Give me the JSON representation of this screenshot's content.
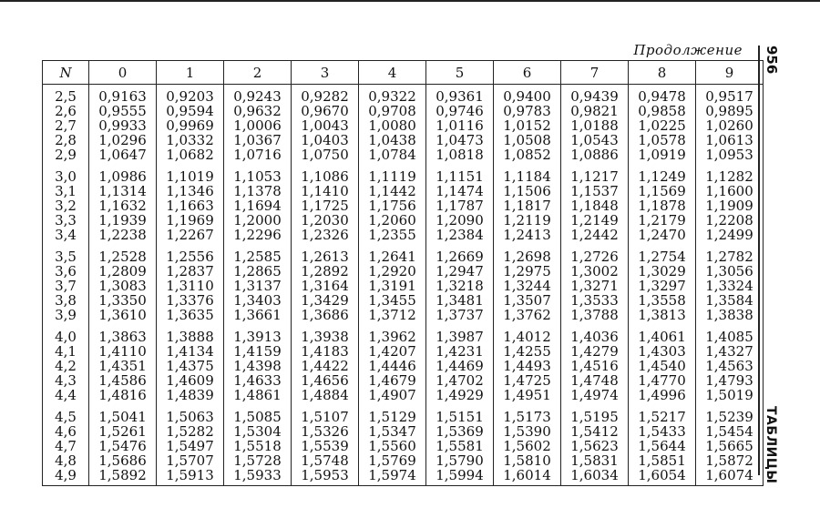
{
  "continuation": "Продолжение",
  "page_number": "956",
  "section": "ТАБЛИЦЫ",
  "columns": [
    "N",
    "0",
    "1",
    "2",
    "3",
    "4",
    "5",
    "6",
    "7",
    "8",
    "9"
  ],
  "groups": [
    [
      [
        "2,5",
        "0,9163",
        "0,9203",
        "0,9243",
        "0,9282",
        "0,9322",
        "0,9361",
        "0,9400",
        "0,9439",
        "0,9478",
        "0,9517"
      ],
      [
        "2,6",
        "0,9555",
        "0,9594",
        "0,9632",
        "0,9670",
        "0,9708",
        "0,9746",
        "0,9783",
        "0,9821",
        "0,9858",
        "0,9895"
      ],
      [
        "2,7",
        "0,9933",
        "0,9969",
        "1,0006",
        "1,0043",
        "1,0080",
        "1,0116",
        "1,0152",
        "1,0188",
        "1,0225",
        "1,0260"
      ],
      [
        "2,8",
        "1,0296",
        "1,0332",
        "1,0367",
        "1,0403",
        "1,0438",
        "1,0473",
        "1,0508",
        "1,0543",
        "1,0578",
        "1,0613"
      ],
      [
        "2,9",
        "1,0647",
        "1,0682",
        "1,0716",
        "1,0750",
        "1,0784",
        "1,0818",
        "1,0852",
        "1,0886",
        "1,0919",
        "1,0953"
      ]
    ],
    [
      [
        "3,0",
        "1,0986",
        "1,1019",
        "1,1053",
        "1,1086",
        "1,1119",
        "1,1151",
        "1,1184",
        "1,1217",
        "1,1249",
        "1,1282"
      ],
      [
        "3,1",
        "1,1314",
        "1,1346",
        "1,1378",
        "1,1410",
        "1,1442",
        "1,1474",
        "1,1506",
        "1,1537",
        "1,1569",
        "1,1600"
      ],
      [
        "3,2",
        "1,1632",
        "1,1663",
        "1,1694",
        "1,1725",
        "1,1756",
        "1,1787",
        "1,1817",
        "1,1848",
        "1,1878",
        "1,1909"
      ],
      [
        "3,3",
        "1,1939",
        "1,1969",
        "1,2000",
        "1,2030",
        "1,2060",
        "1,2090",
        "1,2119",
        "1,2149",
        "1,2179",
        "1,2208"
      ],
      [
        "3,4",
        "1,2238",
        "1,2267",
        "1,2296",
        "1,2326",
        "1,2355",
        "1,2384",
        "1,2413",
        "1,2442",
        "1,2470",
        "1,2499"
      ]
    ],
    [
      [
        "3,5",
        "1,2528",
        "1,2556",
        "1,2585",
        "1,2613",
        "1,2641",
        "1,2669",
        "1,2698",
        "1,2726",
        "1,2754",
        "1,2782"
      ],
      [
        "3,6",
        "1,2809",
        "1,2837",
        "1,2865",
        "1,2892",
        "1,2920",
        "1,2947",
        "1,2975",
        "1,3002",
        "1,3029",
        "1,3056"
      ],
      [
        "3,7",
        "1,3083",
        "1,3110",
        "1,3137",
        "1,3164",
        "1,3191",
        "1,3218",
        "1,3244",
        "1,3271",
        "1,3297",
        "1,3324"
      ],
      [
        "3,8",
        "1,3350",
        "1,3376",
        "1,3403",
        "1,3429",
        "1,3455",
        "1,3481",
        "1,3507",
        "1,3533",
        "1,3558",
        "1,3584"
      ],
      [
        "3,9",
        "1,3610",
        "1,3635",
        "1,3661",
        "1,3686",
        "1,3712",
        "1,3737",
        "1,3762",
        "1,3788",
        "1,3813",
        "1,3838"
      ]
    ],
    [
      [
        "4,0",
        "1,3863",
        "1,3888",
        "1,3913",
        "1,3938",
        "1,3962",
        "1,3987",
        "1,4012",
        "1,4036",
        "1,4061",
        "1,4085"
      ],
      [
        "4,1",
        "1,4110",
        "1,4134",
        "1,4159",
        "1,4183",
        "1,4207",
        "1,4231",
        "1,4255",
        "1,4279",
        "1,4303",
        "1,4327"
      ],
      [
        "4,2",
        "1,4351",
        "1,4375",
        "1,4398",
        "1,4422",
        "1,4446",
        "1,4469",
        "1,4493",
        "1,4516",
        "1,4540",
        "1,4563"
      ],
      [
        "4,3",
        "1,4586",
        "1,4609",
        "1,4633",
        "1,4656",
        "1,4679",
        "1,4702",
        "1,4725",
        "1,4748",
        "1,4770",
        "1,4793"
      ],
      [
        "4,4",
        "1,4816",
        "1,4839",
        "1,4861",
        "1,4884",
        "1,4907",
        "1,4929",
        "1,4951",
        "1,4974",
        "1,4996",
        "1,5019"
      ]
    ],
    [
      [
        "4,5",
        "1,5041",
        "1,5063",
        "1,5085",
        "1,5107",
        "1,5129",
        "1,5151",
        "1,5173",
        "1,5195",
        "1,5217",
        "1,5239"
      ],
      [
        "4,6",
        "1,5261",
        "1,5282",
        "1,5304",
        "1,5326",
        "1,5347",
        "1,5369",
        "1,5390",
        "1,5412",
        "1,5433",
        "1,5454"
      ],
      [
        "4,7",
        "1,5476",
        "1,5497",
        "1,5518",
        "1,5539",
        "1,5560",
        "1,5581",
        "1,5602",
        "1,5623",
        "1,5644",
        "1,5665"
      ],
      [
        "4,8",
        "1,5686",
        "1,5707",
        "1,5728",
        "1,5748",
        "1,5769",
        "1,5790",
        "1,5810",
        "1,5831",
        "1,5851",
        "1,5872"
      ],
      [
        "4,9",
        "1,5892",
        "1,5913",
        "1,5933",
        "1,5953",
        "1,5974",
        "1,5994",
        "1,6014",
        "1,6034",
        "1,6054",
        "1,6074"
      ]
    ]
  ]
}
